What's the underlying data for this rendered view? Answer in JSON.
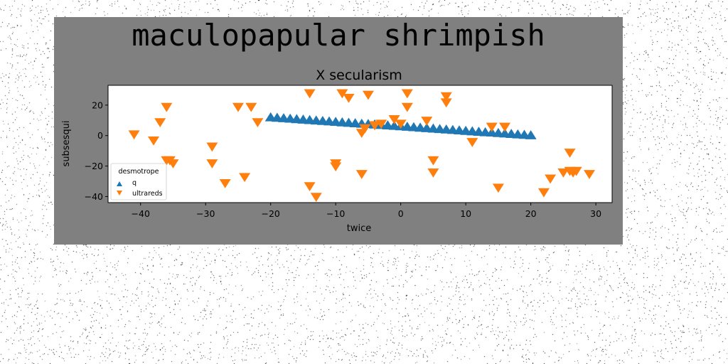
{
  "figure": {
    "suptitle": "maculopapular shrimpish",
    "background_color": "#808080"
  },
  "chart_data": {
    "type": "scatter",
    "title": "X secularism",
    "xlabel": "twice",
    "ylabel": "subsesqui",
    "xlim": [
      -45,
      32.5
    ],
    "ylim": [
      -44,
      33
    ],
    "xticks": [
      -40,
      -30,
      -20,
      -10,
      0,
      10,
      20,
      30
    ],
    "yticks": [
      -40,
      -20,
      0,
      20
    ],
    "grid": false,
    "legend": {
      "title": "desmotrope",
      "placement": "lower-left"
    },
    "series": [
      {
        "name": "q",
        "marker": "triangle-up",
        "color": "#1f77b4",
        "x": [
          -20,
          -19,
          -18,
          -17,
          -16,
          -15,
          -14,
          -13,
          -12,
          -11,
          -10,
          -9,
          -8,
          -7,
          -6,
          -5,
          -4,
          -3,
          -2,
          -1,
          0,
          1,
          2,
          3,
          4,
          5,
          6,
          7,
          8,
          9,
          10,
          11,
          12,
          13,
          14,
          15,
          16,
          17,
          18,
          19,
          20
        ],
        "y": [
          11.8,
          11.5,
          11.2,
          10.9,
          10.6,
          10.3,
          10.0,
          9.7,
          9.4,
          9.1,
          8.8,
          8.5,
          8.2,
          7.9,
          7.6,
          7.4,
          7.1,
          6.8,
          6.5,
          6.2,
          5.9,
          5.6,
          5.3,
          5.0,
          4.7,
          4.4,
          4.1,
          3.8,
          3.5,
          3.2,
          2.9,
          2.6,
          2.3,
          2.0,
          1.8,
          1.5,
          1.2,
          0.9,
          0.6,
          0.3,
          0.0
        ]
      },
      {
        "name": "ultrareds",
        "marker": "triangle-down",
        "color": "#ff7f0e",
        "x": [
          -41,
          -38,
          -37,
          -36,
          -36,
          -35.5,
          -35,
          -29,
          -29,
          -27,
          -25,
          -24,
          -23,
          -22,
          -14,
          -14,
          -13,
          -10,
          -10,
          -9,
          -8,
          -6,
          -6,
          -5.5,
          -5,
          -4,
          -3,
          -1,
          0,
          1,
          1,
          4,
          5,
          5,
          7,
          7,
          11,
          14,
          15,
          16,
          22,
          23,
          25,
          26,
          26,
          26.5,
          27,
          29
        ],
        "y": [
          1,
          -3,
          9,
          19,
          -16,
          -16,
          -18,
          -7,
          -18,
          -31,
          19,
          -27,
          19,
          9,
          28,
          -33,
          -40,
          -18,
          -20,
          28,
          25,
          -25,
          2,
          5,
          27,
          7,
          8,
          11,
          8,
          19,
          28,
          10,
          -24,
          -16,
          22,
          26,
          -4,
          6,
          -34,
          6,
          -37,
          -28,
          -24,
          -23,
          -11,
          -24,
          -23,
          -25
        ]
      }
    ]
  }
}
